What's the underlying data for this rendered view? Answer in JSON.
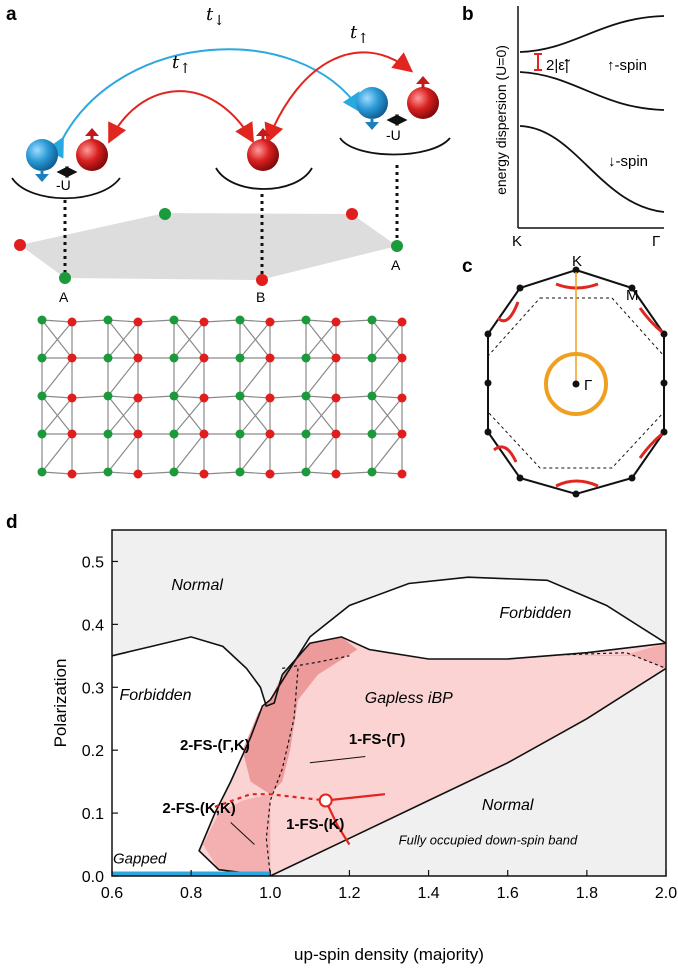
{
  "panels": {
    "a": "a",
    "b": "b",
    "c": "c",
    "d": "d"
  },
  "panel_a": {
    "hop_labels": {
      "t_down": {
        "sym": "t",
        "sub": "↓"
      },
      "t_up_left": {
        "sym": "t",
        "sub": "↑"
      },
      "t_up_right": {
        "sym": "t",
        "sub": "↑"
      }
    },
    "interaction_left": "-U",
    "interaction_right": "-U",
    "site_labels": {
      "a_left": "A",
      "b_mid": "B",
      "a_right": "A"
    },
    "colors": {
      "up": "#e0261f",
      "down": "#2ba2dc",
      "lattice_a": "#1a9a3a",
      "lattice_b": "#e01e1e",
      "hop_down": "#2aa8e0",
      "hop_up": "#e0261f"
    }
  },
  "panel_b": {
    "ylabel": "energy dispersion (U=0)",
    "gap_label": "2|ε̃|",
    "up_label": "↑-spin",
    "down_label": "↓-spin",
    "x_ticks": [
      "K",
      "Γ"
    ]
  },
  "panel_c": {
    "labels": {
      "K": "K",
      "M": "M",
      "Gamma": "Γ"
    },
    "colors": {
      "fs_gamma": "#f0a020",
      "fs_K": "#e0261f"
    }
  },
  "chart_data": {
    "type": "area",
    "xlabel": "up-spin density (majority)",
    "ylabel": "Polarization",
    "xlim": [
      0.6,
      2.0
    ],
    "ylim": [
      0.0,
      0.55
    ],
    "xticks": [
      "0.6",
      "0.8",
      "1.0",
      "1.2",
      "1.4",
      "1.6",
      "1.8",
      "2.0"
    ],
    "yticks": [
      "0.0",
      "0.1",
      "0.2",
      "0.3",
      "0.4",
      "0.5"
    ],
    "regions": [
      {
        "label": "Normal",
        "style": "italic"
      },
      {
        "label": "Forbidden",
        "style": "italic",
        "where": "upper"
      },
      {
        "label": "Forbidden",
        "style": "italic",
        "where": "left"
      },
      {
        "label": "Gapless iBP",
        "style": "italic"
      },
      {
        "label": "2-FS-(Γ,K)",
        "style": "bold"
      },
      {
        "label": "1-FS-(Γ)",
        "style": "bold"
      },
      {
        "label": "2-FS-(K,K)",
        "style": "bold"
      },
      {
        "label": "1-FS-(K)",
        "style": "bold"
      },
      {
        "label": "Normal",
        "style": "italic",
        "where": "lower"
      },
      {
        "label": "Fully occupied down-spin band",
        "style": "italic"
      },
      {
        "label": "Gapped",
        "style": "italic"
      }
    ],
    "boundaries": {
      "upper_forbidden": [
        [
          1.0,
          0.28
        ],
        [
          1.1,
          0.38
        ],
        [
          1.2,
          0.43
        ],
        [
          1.35,
          0.465
        ],
        [
          1.5,
          0.475
        ],
        [
          1.7,
          0.47
        ],
        [
          1.85,
          0.43
        ],
        [
          2.0,
          0.37
        ]
      ],
      "left_forbidden": [
        [
          0.6,
          0.35
        ],
        [
          0.7,
          0.365
        ],
        [
          0.8,
          0.38
        ],
        [
          0.88,
          0.365
        ],
        [
          0.94,
          0.33
        ],
        [
          0.975,
          0.3
        ],
        [
          0.99,
          0.27
        ],
        [
          1.01,
          0.275
        ],
        [
          1.03,
          0.32
        ]
      ],
      "ibp_top": [
        [
          1.03,
          0.32
        ],
        [
          1.1,
          0.37
        ],
        [
          1.18,
          0.38
        ],
        [
          1.25,
          0.36
        ],
        [
          1.4,
          0.345
        ],
        [
          1.6,
          0.345
        ],
        [
          1.8,
          0.355
        ],
        [
          2.0,
          0.37
        ]
      ],
      "fully_occupied_edge": [
        [
          1.0,
          0.0
        ],
        [
          1.2,
          0.06
        ],
        [
          1.4,
          0.12
        ],
        [
          1.6,
          0.18
        ],
        [
          1.8,
          0.25
        ],
        [
          2.0,
          0.33
        ]
      ],
      "ibp_left": [
        [
          1.0,
          0.0
        ],
        [
          0.87,
          0.01
        ],
        [
          0.82,
          0.04
        ],
        [
          0.86,
          0.1
        ],
        [
          0.9,
          0.15
        ],
        [
          0.95,
          0.22
        ],
        [
          0.98,
          0.27
        ],
        [
          1.0,
          0.28
        ]
      ]
    },
    "gapped_segment": [
      0.6,
      1.0
    ],
    "critical_point": [
      1.14,
      0.12
    ],
    "colors": {
      "forbidden_fill": "#f0f0f0",
      "ibp_light": "#fbd3d3",
      "ibp_mid": "#f4b0b0",
      "ibp_dark": "#ec9a9a",
      "gapped": "#2aa8e0",
      "dotted_red": "#e0261f"
    }
  }
}
